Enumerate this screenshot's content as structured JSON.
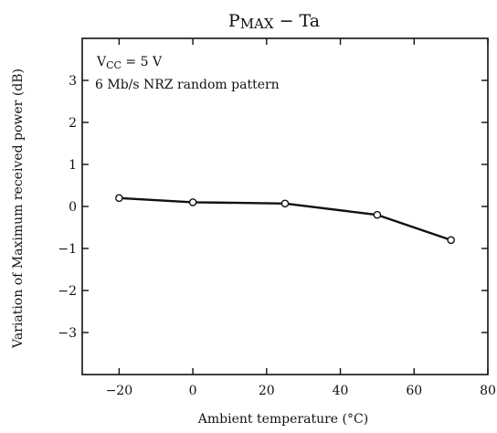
{
  "chart_data": {
    "type": "line",
    "title_main": "P",
    "title_sub": "MAX",
    "title_rest": " − Ta",
    "xlabel": "Ambient temperature (°C)",
    "ylabel": "Variation of Maximum received power (dB)",
    "xlim": [
      -30,
      80
    ],
    "ylim": [
      -4,
      4
    ],
    "xticks": [
      -20,
      0,
      20,
      40,
      60,
      80
    ],
    "xtick_labels": [
      "−20",
      "0",
      "20",
      "40",
      "60",
      "80"
    ],
    "yticks": [
      -3,
      -2,
      -1,
      0,
      1,
      2,
      3
    ],
    "ytick_labels": [
      "−3",
      "−2",
      "−1",
      "0",
      "1",
      "2",
      "3"
    ],
    "grid": false,
    "series": [
      {
        "x": [
          -20,
          0,
          25,
          50,
          70
        ],
        "y": [
          0.2,
          0.1,
          0.07,
          -0.2,
          -0.8
        ]
      }
    ],
    "annotations": {
      "vcc_main": "V",
      "vcc_sub": "CC",
      "vcc_rest": " = 5 V",
      "pattern": "6 Mb/s NRZ random pattern"
    }
  }
}
